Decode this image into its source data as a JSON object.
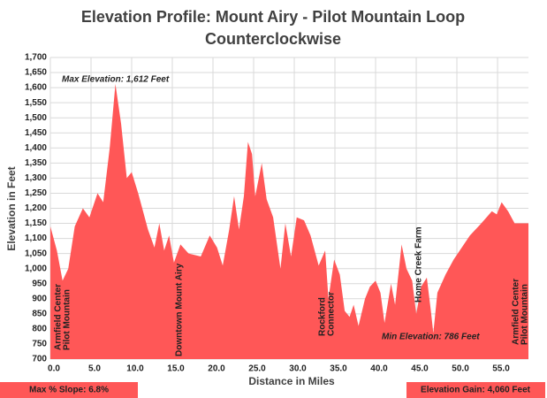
{
  "chart_data": {
    "type": "area",
    "title": [
      "Elevation Profile: Mount Airy - Pilot Mountain Loop",
      "Counterclockwise"
    ],
    "xlabel": "Distance in Miles",
    "ylabel": "Elevation in Feet",
    "color": "#ff5757",
    "grid": true,
    "xlim": [
      0,
      58.8
    ],
    "ylim": [
      700,
      1700
    ],
    "xticks": [
      {
        "value": 0,
        "label": "0.0"
      },
      {
        "value": 5,
        "label": "5.0"
      },
      {
        "value": 10,
        "label": "10.0"
      },
      {
        "value": 15,
        "label": "15.0"
      },
      {
        "value": 20,
        "label": "20.0"
      },
      {
        "value": 25,
        "label": "25.0"
      },
      {
        "value": 30,
        "label": "30.0"
      },
      {
        "value": 35,
        "label": "35.0"
      },
      {
        "value": 40,
        "label": "40.0"
      },
      {
        "value": 45,
        "label": "45.0"
      },
      {
        "value": 50,
        "label": "50.0"
      },
      {
        "value": 55,
        "label": "55.0"
      }
    ],
    "yticks": [
      700,
      750,
      800,
      850,
      900,
      950,
      {
        "value": 1000,
        "label": "1,000"
      },
      {
        "value": 1050,
        "label": "1,050"
      },
      {
        "value": 1100,
        "label": "1,100"
      },
      {
        "value": 1150,
        "label": "1,150"
      },
      {
        "value": 1200,
        "label": "1,200"
      },
      {
        "value": 1250,
        "label": "1,250"
      },
      {
        "value": 1300,
        "label": "1,300"
      },
      {
        "value": 1350,
        "label": "1,350"
      },
      {
        "value": 1400,
        "label": "1,400"
      },
      {
        "value": 1450,
        "label": "1,450"
      },
      {
        "value": 1500,
        "label": "1,500"
      },
      {
        "value": 1550,
        "label": "1,550"
      },
      {
        "value": 1600,
        "label": "1,600"
      },
      {
        "value": 1650,
        "label": "1,650"
      },
      {
        "value": 1700,
        "label": "1,700"
      }
    ],
    "x": [
      0,
      0.8,
      1.5,
      2.2,
      3.0,
      4.0,
      4.8,
      5.8,
      6.5,
      7.3,
      8.0,
      8.7,
      9.4,
      10.0,
      10.8,
      12.0,
      12.8,
      13.4,
      14.0,
      14.6,
      15.2,
      16.0,
      17.0,
      18.5,
      19.6,
      20.5,
      21.2,
      22.0,
      22.6,
      23.2,
      23.8,
      24.3,
      24.8,
      25.2,
      26.0,
      26.6,
      27.4,
      28.3,
      28.9,
      29.6,
      30.3,
      31.2,
      32.0,
      33.0,
      33.8,
      34.2,
      34.9,
      35.6,
      36.2,
      36.8,
      37.3,
      37.9,
      38.7,
      39.3,
      40.0,
      40.6,
      41.1,
      41.9,
      42.4,
      42.8,
      43.2,
      43.8,
      44.5,
      45.0,
      45.6,
      46.3,
      46.8,
      47.1,
      47.6,
      48.6,
      49.6,
      50.6,
      51.6,
      53.0,
      54.3,
      54.9,
      55.5,
      56.3,
      57.1,
      58.8
    ],
    "values": [
      1140,
      1060,
      960,
      1000,
      1140,
      1200,
      1170,
      1250,
      1220,
      1400,
      1612,
      1480,
      1300,
      1320,
      1250,
      1130,
      1070,
      1150,
      1060,
      1110,
      1020,
      1080,
      1050,
      1040,
      1110,
      1070,
      1010,
      1130,
      1240,
      1130,
      1240,
      1420,
      1380,
      1240,
      1350,
      1230,
      1170,
      1000,
      1150,
      1040,
      1170,
      1160,
      1110,
      1010,
      1060,
      900,
      1030,
      980,
      860,
      840,
      880,
      810,
      900,
      940,
      960,
      920,
      820,
      950,
      880,
      980,
      1080,
      1000,
      960,
      850,
      940,
      970,
      860,
      786,
      920,
      980,
      1030,
      1070,
      1110,
      1150,
      1190,
      1180,
      1220,
      1190,
      1150,
      1150
    ],
    "annotations": [
      "Max Elevation: 1,612 Feet",
      "Armfield Center",
      "Pilot Mountain",
      "Downtown Mount Airy",
      "Rockford",
      "Connector",
      "Home Creek Farm",
      "Min Elevation: 786 Feet",
      "Armfield Center",
      "Pilot Mountain",
      "Max % Slope: 6.8%",
      "Elevation Gain: 4,060 Feet"
    ]
  }
}
